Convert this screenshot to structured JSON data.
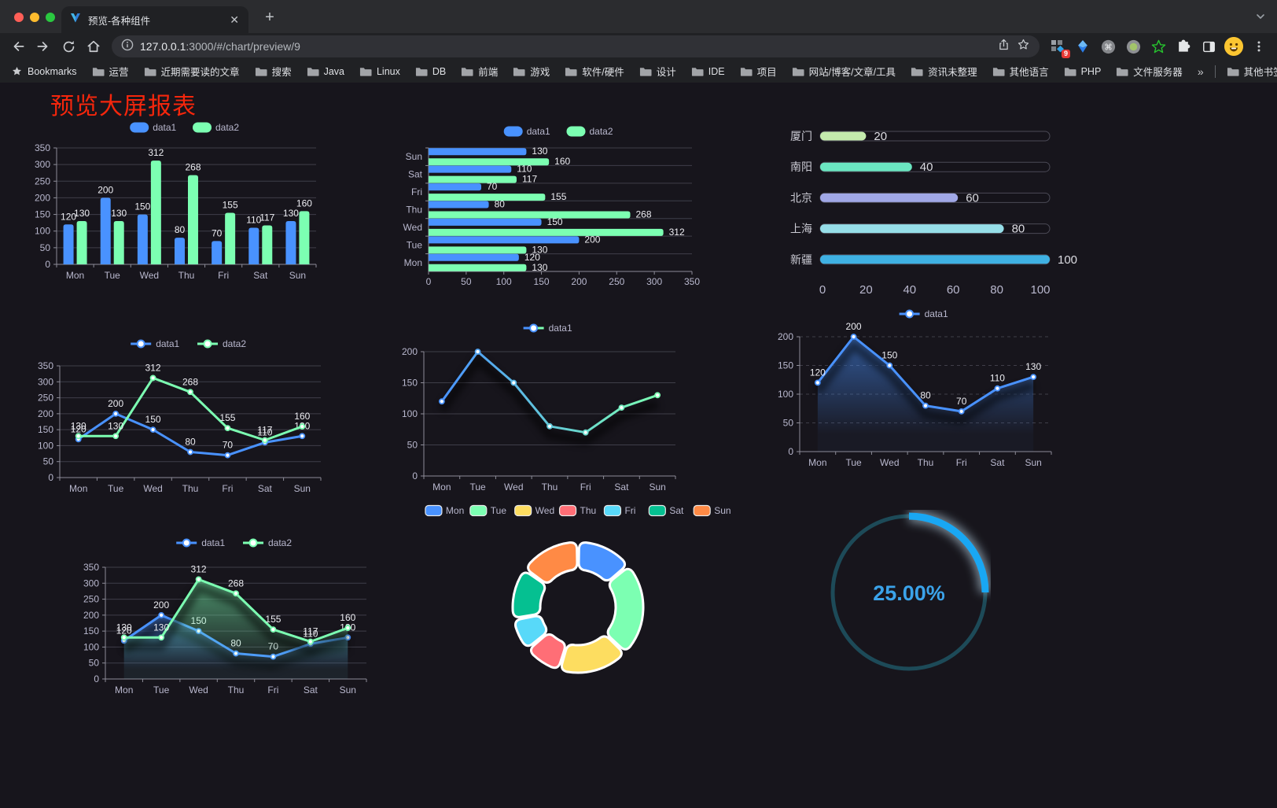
{
  "browser": {
    "tab_title": "预览-各种组件",
    "new_tab_label": "+",
    "url_host": "127.0.0.1",
    "url_rest": ":3000/#/chart/preview/9",
    "extension_badge": "9",
    "bookmarks_bar": {
      "bookmarks_label": "Bookmarks",
      "folders": [
        "运营",
        "近期需要读的文章",
        "搜索",
        "Java",
        "Linux",
        "DB",
        "前端",
        "游戏",
        "软件/硬件",
        "设计",
        "IDE",
        "项目",
        "网站/博客/文章/工具",
        "资讯未整理",
        "其他语言",
        "PHP",
        "文件服务器"
      ],
      "overflow_label": "»",
      "other_bookmarks_label": "其他书签"
    }
  },
  "page": {
    "title": "预览大屏报表",
    "title_color": "#f5260c"
  },
  "colors": {
    "data1": "#4992ff",
    "data2": "#7cffb2",
    "axis_label": "#B9B8CE",
    "grid_line": "#3f3e49",
    "axis_line": "#8d8c98",
    "value_label": "#ededf2",
    "pie": [
      "#4992ff",
      "#7cffb2",
      "#fddd60",
      "#ff6e76",
      "#58d9f9",
      "#05c091",
      "#ff8a45"
    ],
    "gauge_arc": "#19a7f3",
    "gauge_track": "#1d4a58",
    "gauge_text": "#3ba3ea"
  },
  "chart_data": [
    {
      "id": "bar-grouped",
      "type": "bar",
      "legend": [
        "data1",
        "data2"
      ],
      "categories": [
        "Mon",
        "Tue",
        "Wed",
        "Thu",
        "Fri",
        "Sat",
        "Sun"
      ],
      "series": [
        {
          "name": "data1",
          "values": [
            120,
            200,
            150,
            80,
            70,
            110,
            130
          ]
        },
        {
          "name": "data2",
          "values": [
            130,
            130,
            312,
            268,
            155,
            117,
            160
          ]
        }
      ],
      "ylim": [
        0,
        350
      ],
      "ytick_step": 50,
      "value_labels": true
    },
    {
      "id": "bar-horizontal",
      "type": "bar-horizontal",
      "legend": [
        "data1",
        "data2"
      ],
      "categories_top_to_bottom": [
        "Sun",
        "Sat",
        "Fri",
        "Thu",
        "Wed",
        "Tue",
        "Mon"
      ],
      "series": [
        {
          "name": "data1",
          "values_top_to_bottom": [
            130,
            110,
            70,
            80,
            150,
            200,
            120
          ]
        },
        {
          "name": "data2",
          "values_top_to_bottom": [
            160,
            117,
            155,
            268,
            312,
            130,
            130
          ]
        }
      ],
      "xlim": [
        0,
        350
      ],
      "xtick_step": 50,
      "value_labels": true
    },
    {
      "id": "progress-bars",
      "type": "progress",
      "categories": [
        "厦门",
        "南阳",
        "北京",
        "上海",
        "新疆"
      ],
      "values": [
        20,
        40,
        60,
        80,
        100
      ],
      "colors": [
        "#c4ebad",
        "#6be6c1",
        "#a0a7e6",
        "#96dee8",
        "#3fb1e3"
      ],
      "xlim": [
        0,
        100
      ],
      "xticks": [
        0,
        20,
        40,
        60,
        80,
        100
      ]
    },
    {
      "id": "line-two-series",
      "type": "line",
      "legend": [
        "data1",
        "data2"
      ],
      "categories": [
        "Mon",
        "Tue",
        "Wed",
        "Thu",
        "Fri",
        "Sat",
        "Sun"
      ],
      "series": [
        {
          "name": "data1",
          "values": [
            120,
            200,
            150,
            80,
            70,
            110,
            130
          ]
        },
        {
          "name": "data2",
          "values": [
            130,
            130,
            312,
            268,
            155,
            117,
            160
          ]
        }
      ],
      "ylim": [
        0,
        350
      ],
      "ytick_step": 50,
      "value_labels": true
    },
    {
      "id": "line-gradient",
      "type": "line",
      "legend": [
        "data1"
      ],
      "categories": [
        "Mon",
        "Tue",
        "Wed",
        "Thu",
        "Fri",
        "Sat",
        "Sun"
      ],
      "series": [
        {
          "name": "data1",
          "values": [
            120,
            200,
            150,
            80,
            70,
            110,
            130
          ],
          "gradient": [
            "#4992ff",
            "#7cffb2"
          ]
        }
      ],
      "ylim": [
        0,
        200
      ],
      "ytick_step": 50,
      "value_labels": false,
      "shadow": true
    },
    {
      "id": "area-single",
      "type": "area",
      "legend": [
        "data1"
      ],
      "categories": [
        "Mon",
        "Tue",
        "Wed",
        "Thu",
        "Fri",
        "Sat",
        "Sun"
      ],
      "series": [
        {
          "name": "data1",
          "values": [
            120,
            200,
            150,
            80,
            70,
            110,
            130
          ],
          "area": true
        }
      ],
      "ylim": [
        0,
        200
      ],
      "ytick_step": 50,
      "value_labels": true,
      "dashed_grid": true,
      "shadow": true
    },
    {
      "id": "area-two-series",
      "type": "area",
      "legend": [
        "data1",
        "data2"
      ],
      "categories": [
        "Mon",
        "Tue",
        "Wed",
        "Thu",
        "Fri",
        "Sat",
        "Sun"
      ],
      "series": [
        {
          "name": "data1",
          "values": [
            120,
            200,
            150,
            80,
            70,
            110,
            130
          ],
          "area": true
        },
        {
          "name": "data2",
          "values": [
            130,
            130,
            312,
            268,
            155,
            117,
            160
          ],
          "area": true
        }
      ],
      "ylim": [
        0,
        350
      ],
      "ytick_step": 50,
      "value_labels": true,
      "shadow": true
    },
    {
      "id": "donut",
      "type": "pie",
      "legend": [
        "Mon",
        "Tue",
        "Wed",
        "Thu",
        "Fri",
        "Sat",
        "Sun"
      ],
      "categories": [
        "Mon",
        "Tue",
        "Wed",
        "Thu",
        "Fri",
        "Sat",
        "Sun"
      ],
      "values": [
        120,
        200,
        150,
        80,
        70,
        110,
        130
      ],
      "inner_radius_pct": 58
    },
    {
      "id": "gauge",
      "type": "gauge",
      "value": 25,
      "max": 100,
      "label": "25.00%"
    }
  ]
}
